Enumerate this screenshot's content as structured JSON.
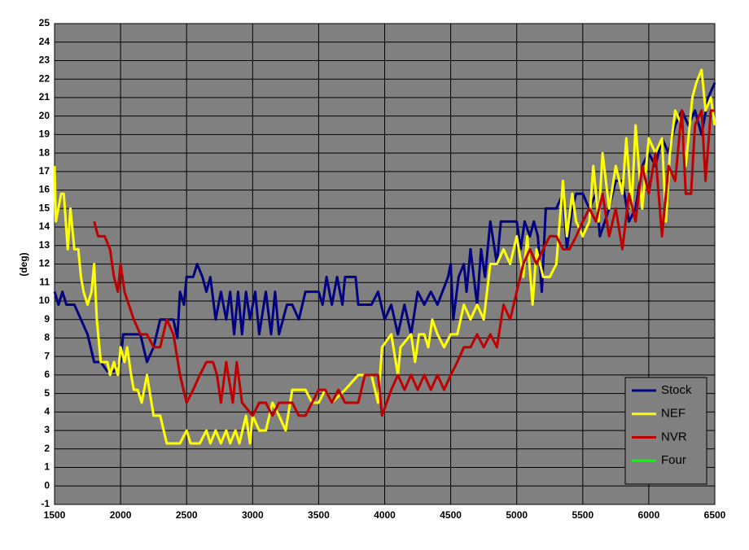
{
  "chart_data": {
    "type": "line",
    "y_label": "(deg)",
    "xlim": [
      1500,
      6500
    ],
    "xticks": [
      1500,
      2000,
      2500,
      3000,
      3500,
      4000,
      4500,
      5000,
      5500,
      6000,
      6500
    ],
    "ylim": [
      -1,
      25
    ],
    "yticks": [
      -1,
      0,
      1,
      2,
      3,
      4,
      5,
      6,
      7,
      8,
      9,
      10,
      11,
      12,
      13,
      14,
      15,
      16,
      17,
      18,
      19,
      20,
      21,
      22,
      23,
      24,
      25
    ],
    "grid": true,
    "legend": "lower right",
    "background": "#808080",
    "series": [
      {
        "name": "Stock",
        "color": "#000080",
        "x": [
          1500,
          1530,
          1560,
          1590,
          1650,
          1700,
          1750,
          1800,
          1850,
          1900,
          1950,
          2000,
          2020,
          2150,
          2200,
          2250,
          2300,
          2400,
          2430,
          2450,
          2480,
          2500,
          2550,
          2580,
          2620,
          2650,
          2680,
          2720,
          2760,
          2800,
          2830,
          2860,
          2890,
          2920,
          2950,
          2980,
          3020,
          3050,
          3100,
          3140,
          3170,
          3200,
          3230,
          3260,
          3300,
          3350,
          3400,
          3500,
          3530,
          3560,
          3600,
          3640,
          3680,
          3700,
          3780,
          3800,
          3900,
          3950,
          4000,
          4050,
          4100,
          4150,
          4200,
          4250,
          4300,
          4350,
          4400,
          4480,
          4500,
          4520,
          4560,
          4600,
          4620,
          4650,
          4700,
          4730,
          4760,
          4800,
          4850,
          4880,
          5000,
          5030,
          5060,
          5100,
          5130,
          5160,
          5190,
          5220,
          5300,
          5350,
          5380,
          5420,
          5450,
          5500,
          5550,
          5600,
          5630,
          5700,
          5750,
          5800,
          5850,
          5900,
          5950,
          6000,
          6050,
          6100,
          6150,
          6200,
          6250,
          6300,
          6350,
          6400,
          6450,
          6500
        ],
        "values": [
          10.5,
          9.8,
          10.5,
          9.8,
          9.8,
          9,
          8.2,
          6.7,
          6.7,
          6.2,
          6.2,
          6.7,
          8.2,
          8.2,
          6.7,
          7.5,
          9,
          9,
          8,
          10.5,
          9.8,
          11.3,
          11.3,
          12,
          11.3,
          10.5,
          11.3,
          9,
          10.5,
          9,
          10.5,
          8.2,
          10.5,
          8.2,
          10.5,
          9,
          10.5,
          8.2,
          10.5,
          8.2,
          10.5,
          8.2,
          9,
          9.8,
          9.8,
          9,
          10.5,
          10.5,
          9.8,
          11.3,
          9.8,
          11.3,
          9.8,
          11.3,
          11.3,
          9.8,
          9.8,
          10.5,
          9,
          9.8,
          8.2,
          9.8,
          8.2,
          10.5,
          9.8,
          10.5,
          9.8,
          11.3,
          12,
          9,
          11.3,
          12,
          10.5,
          12.8,
          9.8,
          12.8,
          11.3,
          14.3,
          12,
          14.3,
          14.3,
          12.8,
          14.3,
          13.5,
          14.3,
          13.5,
          10.5,
          15,
          15,
          15.8,
          12.8,
          15,
          15.8,
          15.8,
          15,
          15.8,
          13.5,
          15,
          16.5,
          16.5,
          14.3,
          15,
          17.3,
          18,
          17.3,
          18.8,
          18,
          19.5,
          20.3,
          19.5,
          20.3,
          19,
          21,
          21.8
        ]
      },
      {
        "name": "NEF",
        "color": "#ffff00",
        "x": [
          1500,
          1510,
          1550,
          1570,
          1600,
          1620,
          1650,
          1680,
          1700,
          1720,
          1750,
          1780,
          1800,
          1820,
          1850,
          1900,
          1920,
          1950,
          1980,
          2000,
          2030,
          2050,
          2080,
          2100,
          2130,
          2160,
          2200,
          2250,
          2300,
          2350,
          2450,
          2500,
          2530,
          2600,
          2650,
          2680,
          2720,
          2760,
          2800,
          2830,
          2870,
          2900,
          2950,
          2980,
          3000,
          3050,
          3100,
          3150,
          3200,
          3250,
          3300,
          3400,
          3450,
          3500,
          3550,
          3600,
          3700,
          3800,
          3900,
          3950,
          3980,
          4050,
          4100,
          4120,
          4200,
          4230,
          4260,
          4300,
          4330,
          4360,
          4400,
          4450,
          4500,
          4550,
          4600,
          4650,
          4700,
          4750,
          4800,
          4850,
          4900,
          4950,
          5000,
          5050,
          5080,
          5120,
          5150,
          5200,
          5250,
          5300,
          5350,
          5380,
          5420,
          5450,
          5500,
          5550,
          5580,
          5620,
          5650,
          5700,
          5750,
          5800,
          5830,
          5870,
          5900,
          5950,
          6000,
          6050,
          6100,
          6130,
          6160,
          6200,
          6250,
          6280,
          6330,
          6360,
          6400,
          6430,
          6470,
          6500
        ],
        "values": [
          17.3,
          14.3,
          15.8,
          15.8,
          12.8,
          15,
          12.8,
          12.8,
          11.3,
          10.5,
          9.8,
          10.5,
          12,
          9,
          6.7,
          6.7,
          6,
          6.7,
          6,
          7.5,
          6.7,
          7.5,
          6,
          5.2,
          5.2,
          4.5,
          6,
          3.8,
          3.8,
          2.3,
          2.3,
          3,
          2.3,
          2.3,
          3,
          2.3,
          3,
          2.3,
          3,
          2.3,
          3,
          2.3,
          3.8,
          2.3,
          3.8,
          3,
          3,
          4.5,
          3.8,
          3,
          5.2,
          5.2,
          4.5,
          4.5,
          5.2,
          4.5,
          5.2,
          6,
          6,
          4.5,
          7.5,
          8.2,
          6,
          7.5,
          8.2,
          6.7,
          8.2,
          8.2,
          7.5,
          9,
          8.2,
          7.5,
          8.2,
          8.2,
          9.8,
          9,
          9.8,
          9,
          12,
          12,
          12.8,
          12,
          13.5,
          11.3,
          13.5,
          9.8,
          12.8,
          11.3,
          11.3,
          12,
          16.5,
          13.5,
          15.8,
          14.3,
          13.5,
          14.3,
          17.3,
          14.3,
          18,
          15,
          17.3,
          15.8,
          18.8,
          15,
          19.5,
          15,
          18.8,
          18,
          18.8,
          14.3,
          18,
          20.3,
          19.5,
          17.3,
          21,
          21.8,
          22.5,
          20.3,
          21,
          19.5
        ]
      },
      {
        "name": "NVR",
        "color": "#c00000",
        "x": [
          1800,
          1830,
          1880,
          1920,
          1950,
          1980,
          2000,
          2030,
          2100,
          2150,
          2200,
          2250,
          2300,
          2350,
          2400,
          2450,
          2500,
          2550,
          2600,
          2650,
          2700,
          2730,
          2760,
          2800,
          2850,
          2880,
          2920,
          3000,
          3050,
          3100,
          3150,
          3200,
          3300,
          3350,
          3400,
          3450,
          3500,
          3550,
          3600,
          3650,
          3700,
          3800,
          3850,
          3900,
          3950,
          3980,
          4050,
          4100,
          4150,
          4200,
          4250,
          4300,
          4350,
          4400,
          4450,
          4500,
          4550,
          4600,
          4650,
          4700,
          4750,
          4800,
          4850,
          4900,
          4950,
          5000,
          5050,
          5100,
          5150,
          5200,
          5250,
          5300,
          5350,
          5400,
          5450,
          5500,
          5550,
          5600,
          5650,
          5700,
          5750,
          5800,
          5850,
          5900,
          5950,
          6000,
          6050,
          6100,
          6150,
          6200,
          6250,
          6280,
          6320,
          6350,
          6400,
          6430,
          6470,
          6500
        ],
        "values": [
          14.3,
          13.5,
          13.5,
          12.8,
          11.3,
          10.5,
          12,
          10.5,
          9,
          8.2,
          8.2,
          7.5,
          7.5,
          9,
          8.2,
          6,
          4.5,
          5.2,
          6,
          6.7,
          6.7,
          6,
          4.5,
          6.7,
          4.5,
          6.7,
          4.5,
          3.8,
          4.5,
          4.5,
          3.8,
          4.5,
          4.5,
          3.8,
          3.8,
          4.5,
          5.2,
          5.2,
          4.5,
          5.2,
          4.5,
          4.5,
          6,
          6,
          6,
          3.8,
          5.2,
          6,
          5.2,
          6,
          5.2,
          6,
          5.2,
          6,
          5.2,
          6,
          6.7,
          7.5,
          7.5,
          8.2,
          7.5,
          8.2,
          7.5,
          9.8,
          9,
          10.5,
          12,
          12.8,
          12,
          12.8,
          13.5,
          13.5,
          12.8,
          12.8,
          13.5,
          14.3,
          15,
          14.3,
          15.8,
          13.5,
          15,
          12.8,
          15.8,
          14.3,
          17.3,
          15.8,
          18,
          13.5,
          17.3,
          16.5,
          20.3,
          15.8,
          15.8,
          19.5,
          20.3,
          16.5,
          20.3,
          20.3
        ]
      },
      {
        "name": "Four",
        "color": "#00ff00",
        "x": [],
        "values": []
      }
    ]
  }
}
